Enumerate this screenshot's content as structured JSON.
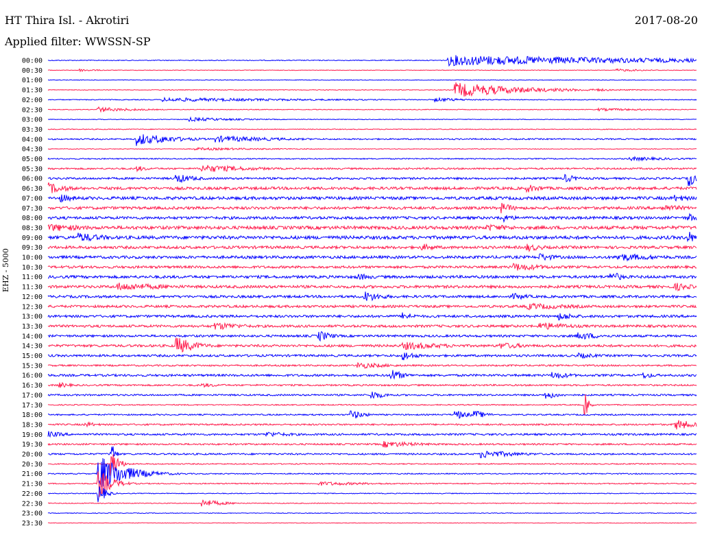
{
  "header": {
    "station": "HT Thira Isl. - Akrotiri",
    "date": "2017-08-20",
    "filter": "Applied filter: WWSSN-SP"
  },
  "chart_data": {
    "type": "line",
    "ylabel": "EHZ - 5000",
    "row_colors": [
      "#0000ff",
      "#ff1a4b"
    ],
    "traces": [
      {
        "label": "00:00",
        "noise": 0.6,
        "events": [
          [
            0.62,
            8,
            0.35
          ]
        ]
      },
      {
        "label": "00:30",
        "noise": 0.4,
        "events": [
          [
            0.05,
            2,
            0.03
          ],
          [
            0.88,
            2,
            0.05
          ]
        ]
      },
      {
        "label": "01:00",
        "noise": 0.4,
        "events": []
      },
      {
        "label": "01:30",
        "noise": 0.5,
        "events": [
          [
            0.63,
            11,
            0.1
          ],
          [
            0.85,
            2,
            0.03
          ]
        ]
      },
      {
        "label": "02:00",
        "noise": 0.6,
        "events": [
          [
            0.18,
            3,
            0.25
          ],
          [
            0.6,
            3,
            0.05
          ]
        ]
      },
      {
        "label": "02:30",
        "noise": 0.5,
        "events": [
          [
            0.08,
            4,
            0.04
          ],
          [
            0.12,
            2,
            0.05
          ],
          [
            0.85,
            2,
            0.1
          ]
        ]
      },
      {
        "label": "03:00",
        "noise": 0.5,
        "events": [
          [
            0.22,
            3,
            0.08
          ]
        ]
      },
      {
        "label": "03:30",
        "noise": 0.6,
        "events": []
      },
      {
        "label": "04:00",
        "noise": 1.0,
        "events": [
          [
            0.14,
            10,
            0.03
          ],
          [
            0.17,
            6,
            0.05
          ],
          [
            0.26,
            5,
            0.1
          ]
        ]
      },
      {
        "label": "04:30",
        "noise": 0.5,
        "events": [
          [
            0.23,
            2,
            0.15
          ]
        ]
      },
      {
        "label": "05:00",
        "noise": 0.8,
        "events": [
          [
            0.9,
            3,
            0.08
          ]
        ]
      },
      {
        "label": "05:30",
        "noise": 1.2,
        "events": [
          [
            0.14,
            4,
            0.02
          ],
          [
            0.24,
            6,
            0.08
          ]
        ]
      },
      {
        "label": "06:00",
        "noise": 1.5,
        "events": [
          [
            0.2,
            7,
            0.03
          ],
          [
            0.8,
            6,
            0.02
          ],
          [
            0.99,
            12,
            0.01
          ]
        ]
      },
      {
        "label": "06:30",
        "noise": 2.0,
        "events": [
          [
            0.0,
            9,
            0.03
          ],
          [
            0.74,
            6,
            0.03
          ]
        ]
      },
      {
        "label": "07:00",
        "noise": 2.2,
        "events": [
          [
            0.02,
            6,
            0.03
          ],
          [
            0.97,
            5,
            0.03
          ]
        ]
      },
      {
        "label": "07:30",
        "noise": 2.0,
        "events": [
          [
            0.7,
            8,
            0.02
          ],
          [
            0.95,
            5,
            0.05
          ]
        ]
      },
      {
        "label": "08:00",
        "noise": 2.0,
        "events": [
          [
            0.7,
            7,
            0.02
          ],
          [
            0.99,
            6,
            0.02
          ]
        ]
      },
      {
        "label": "08:30",
        "noise": 2.4,
        "events": [
          [
            0.0,
            6,
            0.08
          ],
          [
            0.68,
            5,
            0.06
          ]
        ]
      },
      {
        "label": "09:00",
        "noise": 2.4,
        "events": [
          [
            0.05,
            7,
            0.05
          ],
          [
            0.99,
            9,
            0.01
          ]
        ]
      },
      {
        "label": "09:30",
        "noise": 2.0,
        "events": [
          [
            0.58,
            5,
            0.03
          ],
          [
            0.74,
            6,
            0.03
          ]
        ]
      },
      {
        "label": "10:00",
        "noise": 2.0,
        "events": [
          [
            0.76,
            6,
            0.03
          ],
          [
            0.88,
            6,
            0.08
          ]
        ]
      },
      {
        "label": "10:30",
        "noise": 1.8,
        "events": [
          [
            0.72,
            6,
            0.06
          ]
        ]
      },
      {
        "label": "11:00",
        "noise": 2.0,
        "events": [
          [
            0.48,
            5,
            0.03
          ],
          [
            0.87,
            8,
            0.02
          ]
        ]
      },
      {
        "label": "11:30",
        "noise": 2.0,
        "events": [
          [
            0.11,
            6,
            0.1
          ],
          [
            0.97,
            6,
            0.03
          ]
        ]
      },
      {
        "label": "12:00",
        "noise": 1.8,
        "events": [
          [
            0.49,
            8,
            0.03
          ],
          [
            0.72,
            5,
            0.03
          ]
        ]
      },
      {
        "label": "12:30",
        "noise": 1.8,
        "events": [
          [
            0.74,
            5,
            0.1
          ]
        ]
      },
      {
        "label": "13:00",
        "noise": 1.8,
        "events": [
          [
            0.55,
            6,
            0.02
          ],
          [
            0.79,
            6,
            0.03
          ]
        ]
      },
      {
        "label": "13:30",
        "noise": 1.8,
        "events": [
          [
            0.26,
            6,
            0.05
          ],
          [
            0.76,
            6,
            0.06
          ]
        ]
      },
      {
        "label": "14:00",
        "noise": 1.6,
        "events": [
          [
            0.42,
            8,
            0.02
          ],
          [
            0.82,
            6,
            0.04
          ]
        ]
      },
      {
        "label": "14:30",
        "noise": 1.8,
        "events": [
          [
            0.2,
            13,
            0.03
          ],
          [
            0.55,
            6,
            0.08
          ],
          [
            0.7,
            5,
            0.05
          ]
        ]
      },
      {
        "label": "15:00",
        "noise": 1.6,
        "events": [
          [
            0.55,
            7,
            0.02
          ],
          [
            0.82,
            4,
            0.04
          ]
        ]
      },
      {
        "label": "15:30",
        "noise": 1.2,
        "events": [
          [
            0.48,
            5,
            0.05
          ]
        ]
      },
      {
        "label": "16:00",
        "noise": 1.6,
        "events": [
          [
            0.53,
            9,
            0.02
          ],
          [
            0.78,
            6,
            0.03
          ],
          [
            0.92,
            5,
            0.02
          ]
        ]
      },
      {
        "label": "16:30",
        "noise": 1.2,
        "events": [
          [
            0.02,
            4,
            0.02
          ],
          [
            0.24,
            3,
            0.04
          ]
        ]
      },
      {
        "label": "17:00",
        "noise": 1.2,
        "events": [
          [
            0.5,
            7,
            0.02
          ],
          [
            0.77,
            6,
            0.02
          ]
        ]
      },
      {
        "label": "17:30",
        "noise": 0.8,
        "events": [
          [
            0.83,
            16,
            0.005
          ]
        ]
      },
      {
        "label": "18:00",
        "noise": 1.0,
        "events": [
          [
            0.47,
            7,
            0.02
          ],
          [
            0.63,
            7,
            0.02
          ],
          [
            0.66,
            6,
            0.02
          ]
        ]
      },
      {
        "label": "18:30",
        "noise": 1.2,
        "events": [
          [
            0.06,
            4,
            0.02
          ],
          [
            0.97,
            8,
            0.03
          ]
        ]
      },
      {
        "label": "19:00",
        "noise": 1.4,
        "events": [
          [
            0.0,
            5,
            0.03
          ],
          [
            0.34,
            4,
            0.05
          ]
        ]
      },
      {
        "label": "19:30",
        "noise": 1.2,
        "events": [
          [
            0.52,
            5,
            0.06
          ]
        ]
      },
      {
        "label": "20:00",
        "noise": 1.2,
        "events": [
          [
            0.1,
            15,
            0.005
          ],
          [
            0.67,
            6,
            0.06
          ]
        ]
      },
      {
        "label": "20:30",
        "noise": 0.8,
        "events": [
          [
            0.1,
            20,
            0.01
          ]
        ]
      },
      {
        "label": "21:00",
        "noise": 0.8,
        "events": [
          [
            0.08,
            28,
            0.04
          ]
        ]
      },
      {
        "label": "21:30",
        "noise": 0.8,
        "events": [
          [
            0.08,
            20,
            0.02
          ],
          [
            0.42,
            3,
            0.1
          ]
        ]
      },
      {
        "label": "22:00",
        "noise": 0.6,
        "events": [
          [
            0.08,
            14,
            0.01
          ]
        ]
      },
      {
        "label": "22:30",
        "noise": 0.6,
        "events": [
          [
            0.24,
            6,
            0.03
          ]
        ]
      },
      {
        "label": "23:00",
        "noise": 0.5,
        "events": []
      },
      {
        "label": "23:30",
        "noise": 0.4,
        "events": []
      }
    ]
  }
}
